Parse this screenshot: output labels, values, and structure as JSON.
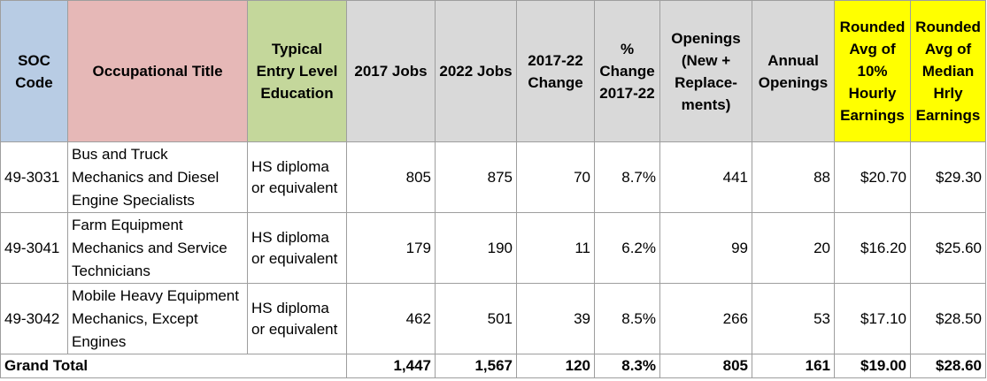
{
  "colors": {
    "soc_header": "#b8cce4",
    "title_header": "#e6b8b7",
    "education_header": "#c4d79b",
    "wage_header": "#ffff00",
    "default_header": "#d9d9d9"
  },
  "headers": {
    "soc_code": "SOC Code",
    "occupational_title": "Occupational Title",
    "education": "Typical Entry Level Education",
    "jobs_2017": "2017 Jobs",
    "jobs_2022": "2022 Jobs",
    "change": "2017-22 Change",
    "pct_change": "% Change 2017-22",
    "openings": "Openings (New + Replace-ments)",
    "annual_openings": "Annual Openings",
    "avg_10pct_hourly": "Rounded Avg of 10% Hourly Earnings",
    "avg_median_hourly": "Rounded Avg of Median Hrly Earnings"
  },
  "rows": [
    {
      "soc": "49-3031",
      "title": "Bus and Truck Mechanics and Diesel Engine Specialists",
      "education": "HS diploma or equivalent",
      "jobs_2017": "805",
      "jobs_2022": "875",
      "change": "70",
      "pct_change": "8.7%",
      "openings": "441",
      "annual_openings": "88",
      "avg_10pct_hourly": "$20.70",
      "avg_median_hourly": "$29.30"
    },
    {
      "soc": "49-3041",
      "title": "Farm Equipment Mechanics and Service Technicians",
      "education": "HS diploma or equivalent",
      "jobs_2017": "179",
      "jobs_2022": "190",
      "change": "11",
      "pct_change": "6.2%",
      "openings": "99",
      "annual_openings": "20",
      "avg_10pct_hourly": "$16.20",
      "avg_median_hourly": "$25.60"
    },
    {
      "soc": "49-3042",
      "title": "Mobile Heavy Equipment Mechanics, Except Engines",
      "education": "HS diploma or equivalent",
      "jobs_2017": "462",
      "jobs_2022": "501",
      "change": "39",
      "pct_change": "8.5%",
      "openings": "266",
      "annual_openings": "53",
      "avg_10pct_hourly": "$17.10",
      "avg_median_hourly": "$28.50"
    }
  ],
  "total": {
    "label": "Grand Total",
    "jobs_2017": "1,447",
    "jobs_2022": "1,567",
    "change": "120",
    "pct_change": "8.3%",
    "openings": "805",
    "annual_openings": "161",
    "avg_10pct_hourly": "$19.00",
    "avg_median_hourly": "$28.60"
  }
}
